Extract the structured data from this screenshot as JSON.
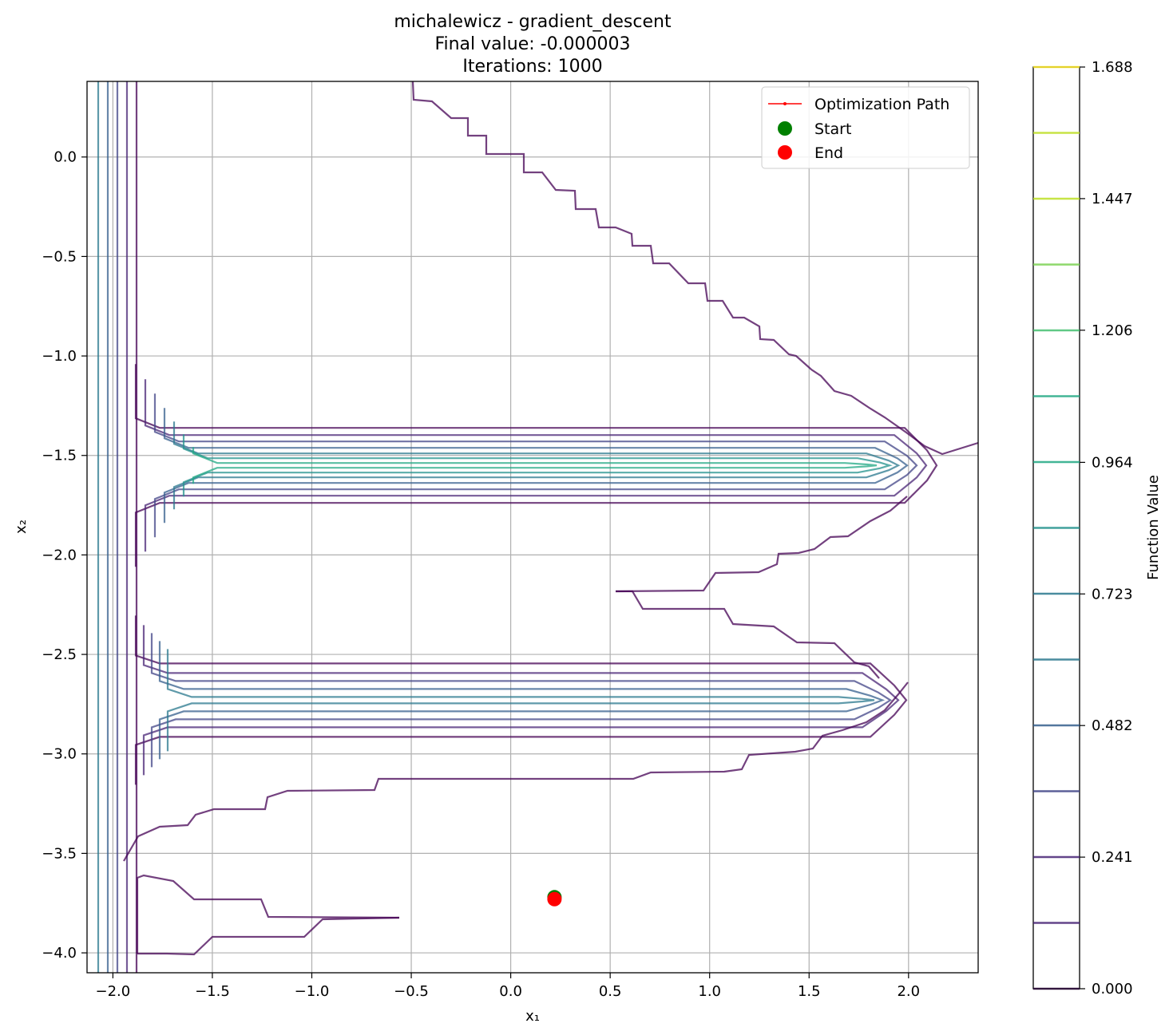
{
  "chart_data": {
    "type": "contour",
    "title_lines": [
      "michalewicz - gradient_descent",
      "Final value: -0.000003",
      "Iterations: 1000"
    ],
    "xlabel": "x₁",
    "ylabel": "x₂",
    "xlim": [
      -2.13,
      2.35
    ],
    "ylim": [
      -4.1,
      0.38
    ],
    "x_ticks": [
      -2.0,
      -1.5,
      -1.0,
      -0.5,
      0.0,
      0.5,
      1.0,
      1.5,
      2.0
    ],
    "x_tick_labels": [
      "−2.0",
      "−1.5",
      "−1.0",
      "−0.5",
      "0.0",
      "0.5",
      "1.0",
      "1.5",
      "2.0"
    ],
    "y_ticks": [
      0.0,
      -0.5,
      -1.0,
      -1.5,
      -2.0,
      -2.5,
      -3.0,
      -3.5,
      -4.0
    ],
    "y_tick_labels": [
      "0.0",
      "−0.5",
      "−1.0",
      "−1.5",
      "−2.0",
      "−2.5",
      "−3.0",
      "−3.5",
      "−4.0"
    ],
    "grid": true,
    "colorbar": {
      "label": "Function Value",
      "min": 0.0,
      "max": 1.688,
      "tick_values": [
        0.0,
        0.241,
        0.482,
        0.723,
        0.964,
        1.206,
        1.447,
        1.688
      ],
      "tick_labels": [
        "0.000",
        "0.241",
        "0.482",
        "0.723",
        "0.964",
        "1.206",
        "1.447",
        "1.688"
      ],
      "levels": [
        0.0,
        0.1206,
        0.2411,
        0.3617,
        0.4823,
        0.6029,
        0.7234,
        0.844,
        0.9646,
        1.0851,
        1.2057,
        1.3263,
        1.4469,
        1.5674,
        1.688
      ],
      "colormap": "viridis"
    },
    "contour_centers": [
      {
        "y": -1.55,
        "x_right_outer": 2.35
      },
      {
        "y": -2.73,
        "x_right_outer": 2.02
      }
    ],
    "legend": {
      "location": "upper right",
      "entries": [
        {
          "label": "Optimization Path",
          "color": "#ff0000",
          "marker": "line"
        },
        {
          "label": "Start",
          "color": "#008000",
          "marker": "circle"
        },
        {
          "label": "End",
          "color": "#ff0000",
          "marker": "circle"
        }
      ]
    },
    "path": {
      "start": [
        0.22,
        -3.72
      ],
      "end": [
        0.22,
        -3.73
      ]
    }
  }
}
